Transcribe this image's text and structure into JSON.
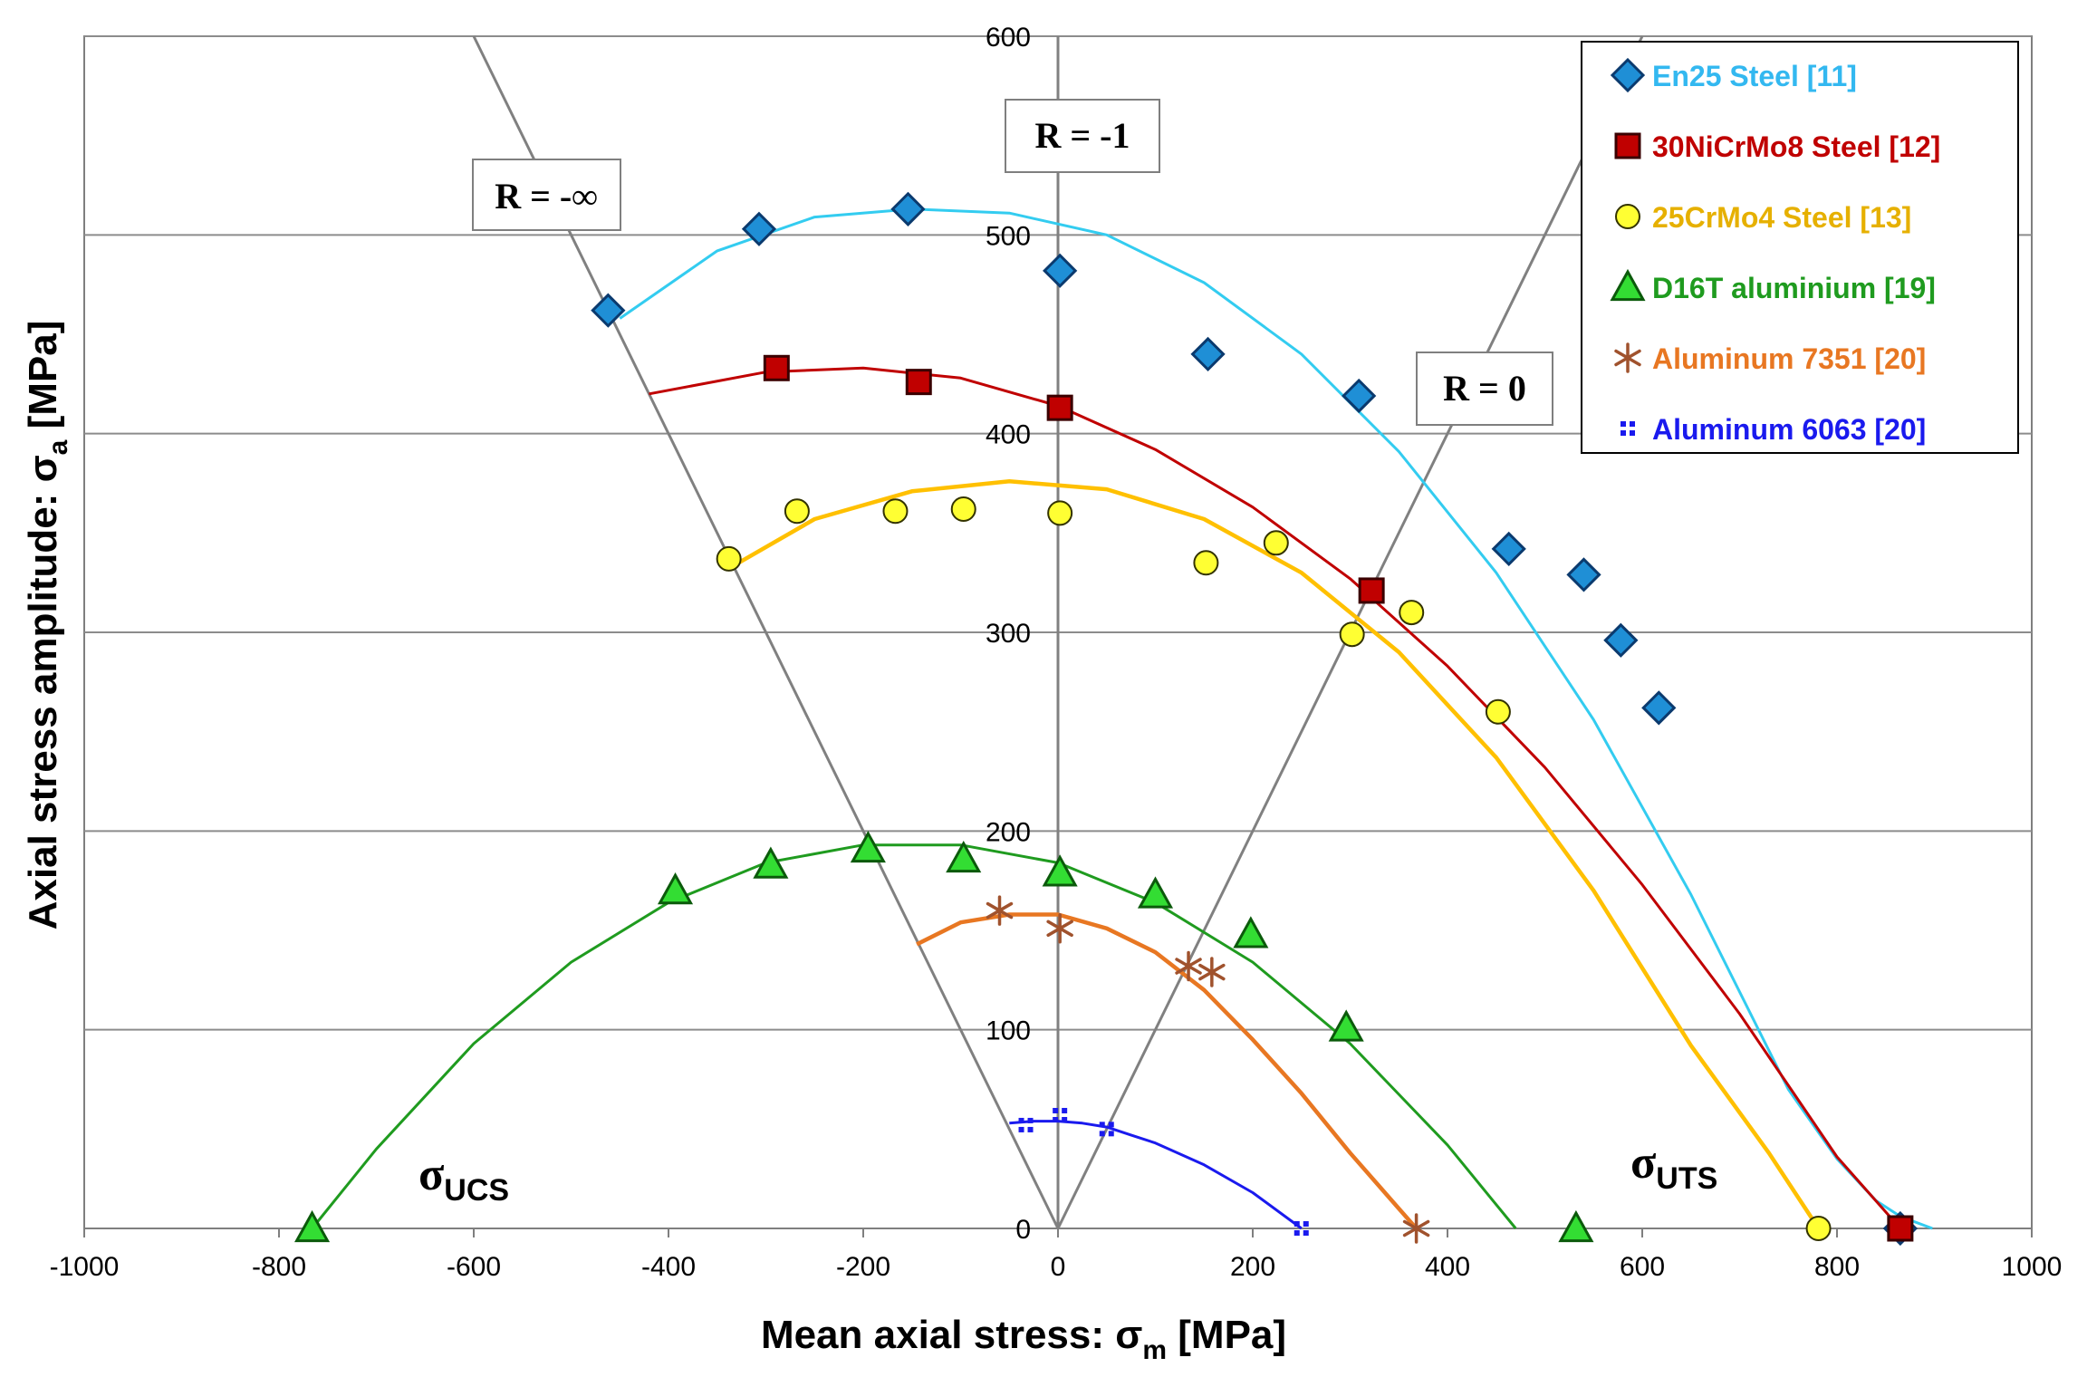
{
  "chart_data": {
    "type": "scatter",
    "title": "",
    "xlabel": "Mean axial stress: σ",
    "xlabel_sub": "m",
    "xlabel_unit": " [MPa]",
    "ylabel": "Axial stress amplitude: σ",
    "ylabel_sub": "a",
    "ylabel_unit": " [MPa]",
    "xlim": [
      -1000,
      1000
    ],
    "ylim": [
      0,
      600
    ],
    "x_ticks": [
      -1000,
      -800,
      -600,
      -400,
      -200,
      0,
      200,
      400,
      600,
      800,
      1000
    ],
    "x_tick_labels": [
      "-1000",
      "-800",
      "-600",
      "-400",
      "-200",
      "0",
      "200",
      "400",
      "600",
      "800",
      "1000"
    ],
    "y_ticks": [
      0,
      100,
      200,
      300,
      400,
      500,
      600
    ],
    "y_tick_labels": [
      "0",
      "100",
      "200",
      "300",
      "400",
      "500",
      "600"
    ],
    "grid": "horizontal",
    "legend_position": "top-right",
    "annotations": {
      "r_neg_inf": "R = -∞",
      "r_neg_one": "R = -1",
      "r_zero": "R = 0",
      "sigma_ucs": "σ",
      "sigma_ucs_sub": "UCS",
      "sigma_uts": "σ",
      "sigma_uts_sub": "UTS"
    },
    "reference_lines": [
      {
        "name": "R = -inf",
        "from": [
          0,
          0
        ],
        "to": [
          -600,
          600
        ]
      },
      {
        "name": "R = -1",
        "from": [
          0,
          0
        ],
        "to": [
          0,
          600
        ]
      },
      {
        "name": "R = 0",
        "from": [
          0,
          0
        ],
        "to": [
          600,
          600
        ]
      }
    ],
    "series": [
      {
        "name": "En25 Steel [11]",
        "marker": "diamond",
        "color": "#33ccf0",
        "fill": "#1f8fd6",
        "text_color": "#33b8f0",
        "points": [
          [
            -462,
            462
          ],
          [
            -307,
            503
          ],
          [
            -154,
            513
          ],
          [
            2,
            482
          ],
          [
            154,
            440
          ],
          [
            309,
            419
          ],
          [
            463,
            342
          ],
          [
            540,
            329
          ],
          [
            578,
            296
          ],
          [
            617,
            262
          ],
          [
            865,
            0
          ]
        ],
        "curve": [
          [
            -450,
            458
          ],
          [
            -350,
            492
          ],
          [
            -250,
            509
          ],
          [
            -150,
            513
          ],
          [
            -50,
            511
          ],
          [
            50,
            500
          ],
          [
            150,
            476
          ],
          [
            250,
            440
          ],
          [
            350,
            391
          ],
          [
            450,
            330
          ],
          [
            550,
            256
          ],
          [
            650,
            168
          ],
          [
            750,
            70
          ],
          [
            800,
            35
          ],
          [
            840,
            14
          ],
          [
            865,
            6
          ],
          [
            898,
            0
          ]
        ]
      },
      {
        "name": "30NiCrMo8 Steel [12]",
        "marker": "square",
        "color": "#c00000",
        "fill": "#c00000",
        "text_color": "#c00000",
        "points": [
          [
            -289,
            433
          ],
          [
            -143,
            426
          ],
          [
            2,
            413
          ],
          [
            322,
            321
          ],
          [
            865,
            0
          ]
        ],
        "curve": [
          [
            -420,
            420
          ],
          [
            -300,
            431
          ],
          [
            -200,
            433
          ],
          [
            -100,
            428
          ],
          [
            0,
            414
          ],
          [
            100,
            392
          ],
          [
            200,
            363
          ],
          [
            300,
            327
          ],
          [
            400,
            283
          ],
          [
            500,
            232
          ],
          [
            600,
            173
          ],
          [
            700,
            108
          ],
          [
            800,
            36
          ],
          [
            865,
            0
          ]
        ]
      },
      {
        "name": "25CrMo4 Steel [13]",
        "marker": "circle",
        "color": "#ffc000",
        "fill": "#ffff33",
        "text_color": "#e6b000",
        "points": [
          [
            -338,
            337
          ],
          [
            -268,
            361
          ],
          [
            -167,
            361
          ],
          [
            -97,
            362
          ],
          [
            2,
            360
          ],
          [
            152,
            335
          ],
          [
            224,
            345
          ],
          [
            302,
            299
          ],
          [
            363,
            310
          ],
          [
            452,
            260
          ],
          [
            781,
            0
          ]
        ],
        "curve": [
          [
            -335,
            333
          ],
          [
            -250,
            357
          ],
          [
            -150,
            371
          ],
          [
            -50,
            376
          ],
          [
            50,
            372
          ],
          [
            150,
            357
          ],
          [
            250,
            330
          ],
          [
            350,
            290
          ],
          [
            450,
            237
          ],
          [
            550,
            170
          ],
          [
            650,
            92
          ],
          [
            730,
            38
          ],
          [
            781,
            0
          ]
        ]
      },
      {
        "name": "D16T aluminium  [19]",
        "marker": "triangle",
        "color": "#1f9b1f",
        "fill": "#33dd33",
        "text_color": "#1f9b1f",
        "points": [
          [
            -766,
            0
          ],
          [
            -393,
            170
          ],
          [
            -295,
            183
          ],
          [
            -195,
            191
          ],
          [
            -97,
            186
          ],
          [
            2,
            179
          ],
          [
            100,
            168
          ],
          [
            198,
            148
          ],
          [
            296,
            101
          ],
          [
            532,
            0
          ]
        ],
        "curve": [
          [
            -766,
            0
          ],
          [
            -700,
            40
          ],
          [
            -600,
            93
          ],
          [
            -500,
            134
          ],
          [
            -400,
            164
          ],
          [
            -300,
            184
          ],
          [
            -200,
            193
          ],
          [
            -100,
            193
          ],
          [
            0,
            184
          ],
          [
            100,
            164
          ],
          [
            200,
            134
          ],
          [
            300,
            93
          ],
          [
            400,
            42
          ],
          [
            470,
            0
          ]
        ]
      },
      {
        "name": "Aluminum 7351 [20]",
        "marker": "star",
        "color": "#e87722",
        "fill": "#a0522d",
        "text_color": "#e87722",
        "points": [
          [
            -60,
            160
          ],
          [
            2,
            151
          ],
          [
            134,
            132
          ],
          [
            158,
            129
          ],
          [
            368,
            0
          ]
        ],
        "curve": [
          [
            -145,
            143
          ],
          [
            -100,
            154
          ],
          [
            -50,
            158
          ],
          [
            0,
            158
          ],
          [
            50,
            151
          ],
          [
            100,
            139
          ],
          [
            150,
            120
          ],
          [
            200,
            95
          ],
          [
            250,
            68
          ],
          [
            300,
            38
          ],
          [
            350,
            10
          ],
          [
            368,
            0
          ]
        ]
      },
      {
        "name": "Aluminum 6063 [20]",
        "marker": "cross",
        "color": "#1a1aee",
        "fill": "#1a1aee",
        "text_color": "#1a1aee",
        "points": [
          [
            -33,
            52
          ],
          [
            2,
            57
          ],
          [
            50,
            50
          ],
          [
            250,
            0
          ]
        ],
        "curve": [
          [
            -50,
            53
          ],
          [
            -25,
            54
          ],
          [
            0,
            54
          ],
          [
            25,
            53
          ],
          [
            50,
            51
          ],
          [
            75,
            47
          ],
          [
            100,
            43
          ],
          [
            150,
            32
          ],
          [
            200,
            18
          ],
          [
            250,
            0
          ]
        ]
      }
    ]
  }
}
